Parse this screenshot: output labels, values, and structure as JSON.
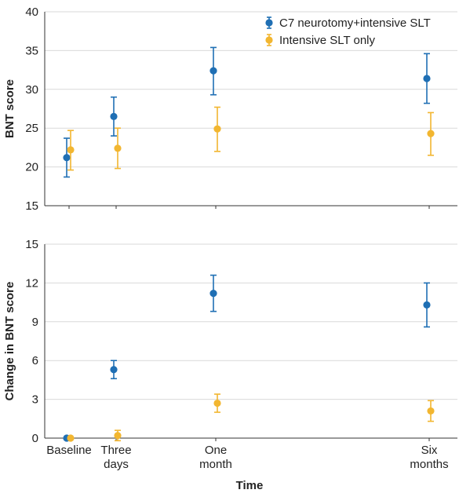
{
  "chart_data": [
    {
      "type": "scatter",
      "panel": "top",
      "ylabel": "BNT score",
      "ylim": [
        15,
        40
      ],
      "yticks": [
        15,
        20,
        25,
        30,
        35,
        40
      ],
      "grid": true,
      "legend": {
        "placement": "top-right",
        "entries": [
          "C7 neurotomy+intensive SLT",
          "Intensive SLT only"
        ]
      },
      "categories": [
        "Baseline",
        "Three days",
        "One month",
        "Six months"
      ],
      "series": [
        {
          "name": "C7 neurotomy+intensive SLT",
          "color": "#1f6fb4",
          "values": [
            21.2,
            26.5,
            32.4,
            31.4
          ],
          "err_low": [
            18.7,
            24.0,
            29.3,
            28.2
          ],
          "err_high": [
            23.7,
            29.0,
            35.4,
            34.6
          ]
        },
        {
          "name": "Intensive SLT only",
          "color": "#f2b630",
          "values": [
            22.2,
            22.4,
            24.9,
            24.3
          ],
          "err_low": [
            19.6,
            19.8,
            22.0,
            21.5
          ],
          "err_high": [
            24.7,
            25.0,
            27.7,
            27.0
          ]
        }
      ]
    },
    {
      "type": "scatter",
      "panel": "bottom",
      "xlabel": "Time",
      "ylabel": "Change in BNT score",
      "ylim": [
        0,
        15
      ],
      "yticks": [
        0,
        3,
        6,
        9,
        12,
        15
      ],
      "grid": true,
      "categories": [
        "Baseline",
        "Three days",
        "One month",
        "Six months"
      ],
      "xtick_labels": [
        [
          "Baseline"
        ],
        [
          "Three",
          "days"
        ],
        [
          "One",
          "month"
        ],
        [
          "Six",
          "months"
        ]
      ],
      "series": [
        {
          "name": "C7 neurotomy+intensive SLT",
          "color": "#1f6fb4",
          "values": [
            0,
            5.3,
            11.2,
            10.3
          ],
          "err_low": [
            0,
            4.6,
            9.8,
            8.6
          ],
          "err_high": [
            0,
            6.0,
            12.6,
            12.0
          ]
        },
        {
          "name": "Intensive SLT only",
          "color": "#f2b630",
          "values": [
            0,
            0.2,
            2.7,
            2.1
          ],
          "err_low": [
            0,
            -0.2,
            2.0,
            1.3
          ],
          "err_high": [
            0,
            0.6,
            3.4,
            2.9
          ]
        }
      ]
    }
  ]
}
